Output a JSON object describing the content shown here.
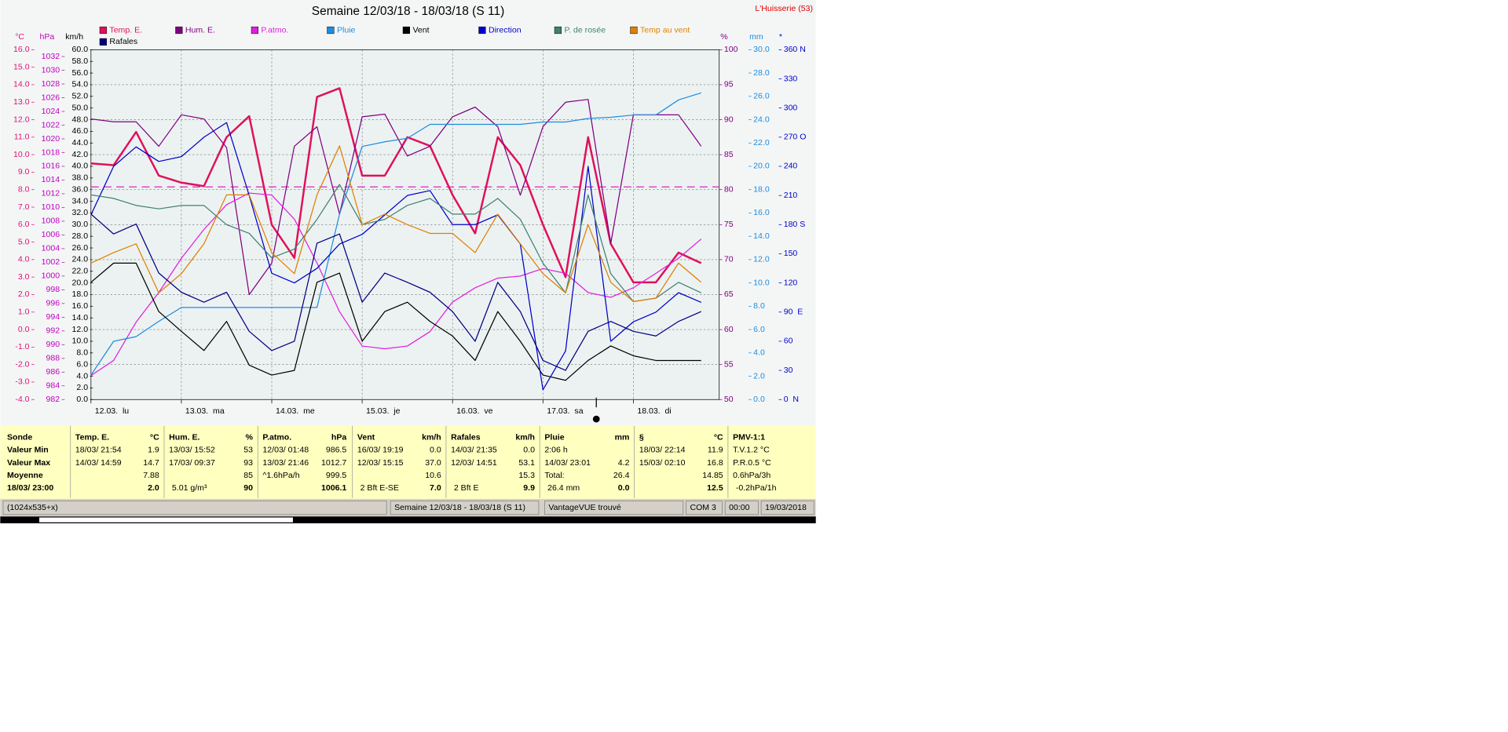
{
  "chart_data": {
    "type": "line",
    "title": "Semaine 12/03/18 - 18/03/18 (S 11)",
    "location": "L'Huisserie (53)",
    "x": [
      0,
      1,
      2,
      3,
      4,
      5,
      6,
      7,
      8,
      9,
      10,
      11,
      12,
      13,
      14,
      15,
      16,
      17,
      18,
      19,
      20,
      21,
      22,
      23,
      24,
      25,
      26,
      27
    ],
    "xlim": [
      0,
      27.8
    ],
    "xticks": [
      {
        "value": 0,
        "label": "12.03.  lu"
      },
      {
        "value": 4,
        "label": "13.03.  ma"
      },
      {
        "value": 8,
        "label": "14.03.  me"
      },
      {
        "value": 12,
        "label": "15.03.  je"
      },
      {
        "value": 16,
        "label": "16.03.  ve"
      },
      {
        "value": 20,
        "label": "17.03.  sa"
      },
      {
        "value": 24,
        "label": "18.03.  di"
      }
    ],
    "grid": true,
    "axes": {
      "temp": {
        "unit": "°C",
        "color": "#e0107a",
        "ylim": [
          -4,
          16
        ],
        "yticks": [
          {
            "value": -4,
            "label": "-4.0"
          },
          {
            "value": -3,
            "label": "-3.0"
          },
          {
            "value": -2,
            "label": "-2.0"
          },
          {
            "value": -1,
            "label": "-1.0"
          },
          {
            "value": 0,
            "label": "0.0"
          },
          {
            "value": 1,
            "label": "1.0"
          },
          {
            "value": 2,
            "label": "2.0"
          },
          {
            "value": 3,
            "label": "3.0"
          },
          {
            "value": 4,
            "label": "4.0"
          },
          {
            "value": 5,
            "label": "5.0"
          },
          {
            "value": 6,
            "label": "6.0"
          },
          {
            "value": 7,
            "label": "7.0"
          },
          {
            "value": 8,
            "label": "8.0"
          },
          {
            "value": 9,
            "label": "9.0"
          },
          {
            "value": 10,
            "label": "10.0"
          },
          {
            "value": 11,
            "label": "11.0"
          },
          {
            "value": 12,
            "label": "12.0"
          },
          {
            "value": 13,
            "label": "13.0"
          },
          {
            "value": 14,
            "label": "14.0"
          },
          {
            "value": 15,
            "label": "15.0"
          },
          {
            "value": 16,
            "label": "16.0"
          }
        ]
      },
      "pressure": {
        "unit": "hPa",
        "color": "#c000c0",
        "ylim": [
          982,
          1033
        ],
        "yticks": [
          982,
          984,
          986,
          988,
          990,
          992,
          994,
          996,
          998,
          1000,
          1002,
          1004,
          1006,
          1008,
          1010,
          1012,
          1014,
          1016,
          1018,
          1020,
          1022,
          1024,
          1026,
          1028,
          1030,
          1032
        ]
      },
      "wind": {
        "unit": "km/h",
        "color": "#000000",
        "ylim": [
          0,
          60
        ],
        "yticks": [
          {
            "value": 0,
            "label": "0.0"
          },
          {
            "value": 2,
            "label": "2.0"
          },
          {
            "value": 4,
            "label": "4.0"
          },
          {
            "value": 6,
            "label": "6.0"
          },
          {
            "value": 8,
            "label": "8.0"
          },
          {
            "value": 10,
            "label": "10.0"
          },
          {
            "value": 12,
            "label": "12.0"
          },
          {
            "value": 14,
            "label": "14.0"
          },
          {
            "value": 16,
            "label": "16.0"
          },
          {
            "value": 18,
            "label": "18.0"
          },
          {
            "value": 20,
            "label": "20.0"
          },
          {
            "value": 22,
            "label": "22.0"
          },
          {
            "value": 24,
            "label": "24.0"
          },
          {
            "value": 26,
            "label": "26.0"
          },
          {
            "value": 28,
            "label": "28.0"
          },
          {
            "value": 30,
            "label": "30.0"
          },
          {
            "value": 32,
            "label": "32.0"
          },
          {
            "value": 34,
            "label": "34.0"
          },
          {
            "value": 36,
            "label": "36.0"
          },
          {
            "value": 38,
            "label": "38.0"
          },
          {
            "value": 40,
            "label": "40.0"
          },
          {
            "value": 42,
            "label": "42.0"
          },
          {
            "value": 44,
            "label": "44.0"
          },
          {
            "value": 46,
            "label": "46.0"
          },
          {
            "value": 48,
            "label": "48.0"
          },
          {
            "value": 50,
            "label": "50.0"
          },
          {
            "value": 52,
            "label": "52.0"
          },
          {
            "value": 54,
            "label": "54.0"
          },
          {
            "value": 56,
            "label": "56.0"
          },
          {
            "value": 58,
            "label": "58.0"
          },
          {
            "value": 60,
            "label": "60.0"
          }
        ]
      },
      "humidity": {
        "unit": "%",
        "color": "#800080",
        "ylim": [
          50,
          100
        ],
        "yticks": [
          50,
          55,
          60,
          65,
          70,
          75,
          80,
          85,
          90,
          95,
          100
        ]
      },
      "rain": {
        "unit": "mm",
        "color": "#1e8ce0",
        "ylim": [
          0,
          30
        ],
        "yticks": [
          {
            "value": 0,
            "label": "0.0"
          },
          {
            "value": 2,
            "label": "2.0"
          },
          {
            "value": 4,
            "label": "4.0"
          },
          {
            "value": 6,
            "label": "6.0"
          },
          {
            "value": 8,
            "label": "8.0"
          },
          {
            "value": 10,
            "label": "10.0"
          },
          {
            "value": 12,
            "label": "12.0"
          },
          {
            "value": 14,
            "label": "14.0"
          },
          {
            "value": 16,
            "label": "16.0"
          },
          {
            "value": 18,
            "label": "18.0"
          },
          {
            "value": 20,
            "label": "20.0"
          },
          {
            "value": 22,
            "label": "22.0"
          },
          {
            "value": 24,
            "label": "24.0"
          },
          {
            "value": 26,
            "label": "26.0"
          },
          {
            "value": 28,
            "label": "28.0"
          },
          {
            "value": 30,
            "label": "30.0"
          }
        ]
      },
      "direction": {
        "unit": "*",
        "color": "#0000cc",
        "ylim": [
          0,
          360
        ],
        "yticks": [
          {
            "value": 0,
            "label": "0  N"
          },
          30,
          60,
          {
            "value": 90,
            "label": "90  E"
          },
          120,
          150,
          {
            "value": 180,
            "label": "180 S"
          },
          210,
          240,
          {
            "value": 270,
            "label": "270 O"
          },
          300,
          330,
          {
            "value": 360,
            "label": "360 N"
          }
        ]
      }
    },
    "reference_line": {
      "axis": "pressure",
      "value": 1013,
      "color": "#e020c0"
    },
    "series": [
      {
        "name": "Temp. E.",
        "color": "#e0105a",
        "axis": "temp",
        "width": 2,
        "values": [
          9.5,
          9.4,
          11.3,
          8.8,
          8.4,
          8.2,
          11.0,
          12.2,
          6.0,
          4.1,
          13.3,
          13.8,
          8.8,
          8.8,
          11.0,
          10.5,
          7.7,
          5.5,
          11.0,
          9.4,
          6.0,
          3.0,
          11.0,
          4.9,
          2.7,
          2.7,
          4.4,
          3.8
        ]
      },
      {
        "name": "Hum. E.",
        "color": "#800080",
        "axis": "humidity",
        "values": [
          90.1,
          89.7,
          89.7,
          86.2,
          90.7,
          90.1,
          86.0,
          65.0,
          69.5,
          86.2,
          89.0,
          76.5,
          90.4,
          90.8,
          84.8,
          86.2,
          90.4,
          91.8,
          89.0,
          79.2,
          89.0,
          92.5,
          92.9,
          72.3,
          90.7,
          90.7,
          90.7,
          86.2
        ]
      },
      {
        "name": "P.atmo.",
        "color": "#e020e0",
        "axis": "pressure",
        "values": [
          985.5,
          987.7,
          993.3,
          997.6,
          1002.6,
          1006.8,
          1010.4,
          1012.1,
          1011.8,
          1008.3,
          1001.9,
          994.8,
          989.8,
          989.4,
          989.8,
          991.9,
          996.2,
          998.3,
          999.7,
          1000.0,
          1001.1,
          1000.4,
          997.6,
          996.9,
          998.3,
          1000.4,
          1002.6,
          1005.4
        ]
      },
      {
        "name": "Pluie",
        "color": "#1e8ce0",
        "axis": "rain",
        "values": [
          2.1,
          5.0,
          5.4,
          6.7,
          7.9,
          7.9,
          7.9,
          7.9,
          7.9,
          7.9,
          7.9,
          15.9,
          21.7,
          22.1,
          22.4,
          23.6,
          23.6,
          23.6,
          23.6,
          23.6,
          23.8,
          23.8,
          24.1,
          24.2,
          24.4,
          24.4,
          25.7,
          26.3
        ]
      },
      {
        "name": "Vent",
        "color": "#000000",
        "axis": "wind",
        "values": [
          20.1,
          23.4,
          23.4,
          15.1,
          11.7,
          8.4,
          13.4,
          5.9,
          4.2,
          5.0,
          20.1,
          21.7,
          10.0,
          15.1,
          16.7,
          13.4,
          10.9,
          6.7,
          15.1,
          10.0,
          4.2,
          3.3,
          6.7,
          9.2,
          7.5,
          6.7,
          6.7,
          6.7
        ]
      },
      {
        "name": "Direction",
        "color": "#0000cc",
        "axis": "direction",
        "values": [
          190,
          240,
          260,
          245,
          250,
          270,
          285,
          210,
          130,
          120,
          135,
          160,
          170,
          190,
          210,
          215,
          180,
          180,
          190,
          160,
          10,
          50,
          240,
          60,
          80,
          90,
          110,
          100
        ]
      },
      {
        "name": "P. de rosée",
        "color": "#408070",
        "axis": "temp",
        "values": [
          7.7,
          7.5,
          7.1,
          6.9,
          7.1,
          7.1,
          6.0,
          5.5,
          4.1,
          4.6,
          6.3,
          8.3,
          6.0,
          6.3,
          7.1,
          7.5,
          6.6,
          6.6,
          7.5,
          6.3,
          3.8,
          2.1,
          7.7,
          3.2,
          1.6,
          1.8,
          2.7,
          2.1
        ]
      },
      {
        "name": "Temp au vent",
        "color": "#e08000",
        "axis": "temp",
        "values": [
          3.8,
          4.4,
          4.9,
          2.1,
          3.2,
          4.9,
          7.7,
          7.7,
          4.4,
          3.2,
          7.7,
          10.5,
          6.0,
          6.6,
          6.0,
          5.5,
          5.5,
          4.4,
          6.6,
          4.9,
          3.2,
          2.1,
          6.0,
          2.7,
          1.6,
          1.8,
          3.8,
          2.7
        ]
      },
      {
        "name": "Rafales",
        "color": "#000080",
        "axis": "wind",
        "values": [
          31.8,
          28.4,
          30.1,
          21.7,
          18.4,
          16.7,
          18.4,
          11.7,
          8.4,
          10.0,
          26.8,
          28.4,
          16.7,
          21.7,
          20.1,
          18.4,
          15.1,
          10.0,
          20.1,
          15.1,
          6.7,
          5.0,
          11.7,
          13.4,
          11.7,
          10.9,
          13.4,
          15.1
        ]
      }
    ]
  },
  "stats": {
    "row_labels": [
      "Sonde",
      "Valeur Min",
      "Valeur Max",
      "Moyenne",
      "18/03/ 23:00"
    ],
    "columns": [
      {
        "header": "Temp. E.",
        "unit": "°C",
        "rows": [
          [
            "18/03/ 21:54",
            "1.9"
          ],
          [
            "14/03/ 14:59",
            "14.7"
          ],
          [
            null,
            "7.88"
          ],
          [
            null,
            "2.0"
          ]
        ]
      },
      {
        "header": "Hum. E.",
        "unit": "%",
        "rows": [
          [
            "13/03/ 15:52",
            "53"
          ],
          [
            "17/03/ 09:37",
            "93"
          ],
          [
            null,
            "85"
          ],
          [
            "5.01 g/m³",
            "90"
          ]
        ]
      },
      {
        "header": "P.atmo.",
        "unit": "hPa",
        "rows": [
          [
            "12/03/ 01:48",
            "986.5"
          ],
          [
            "13/03/ 21:46",
            "1012.7"
          ],
          [
            "^1.6hPa/h",
            "999.5"
          ],
          [
            null,
            "1006.1"
          ]
        ]
      },
      {
        "header": "Vent",
        "unit": "km/h",
        "rows": [
          [
            "16/03/ 19:19",
            "0.0"
          ],
          [
            "12/03/ 15:15",
            "37.0"
          ],
          [
            null,
            "10.6"
          ],
          [
            "2 Bft E-SE",
            "7.0"
          ]
        ]
      },
      {
        "header": "Rafales",
        "unit": "km/h",
        "rows": [
          [
            "14/03/ 21:35",
            "0.0"
          ],
          [
            "12/03/ 14:51",
            "53.1"
          ],
          [
            null,
            "15.3"
          ],
          [
            "2 Bft E",
            "9.9"
          ]
        ]
      },
      {
        "header": "Pluie",
        "unit": "mm",
        "rows": [
          [
            "2:06 h",
            null
          ],
          [
            "14/03/ 23:01",
            "4.2"
          ],
          [
            "Total:",
            "26.4"
          ],
          [
            "26.4 mm",
            "0.0"
          ]
        ]
      },
      {
        "header": "§",
        "unit": "°C",
        "rows": [
          [
            "18/03/ 22:14",
            "11.9"
          ],
          [
            "15/03/ 02:10",
            "16.8"
          ],
          [
            null,
            "14.85"
          ],
          [
            null,
            "12.5"
          ]
        ]
      },
      {
        "header": "PMV-1:1",
        "rows": [
          [
            "T.V.1.2 °C"
          ],
          [
            "P.R.0.5 °C"
          ],
          [
            "0.6hPa/3h"
          ],
          [
            "-0.2hPa/1h"
          ]
        ]
      }
    ]
  },
  "status_bar": [
    "(1024x535+x)",
    "Semaine 12/03/18 - 18/03/18 (S 11)",
    "VantageVUE trouvé",
    "COM 3",
    "00:00",
    "19/03/2018"
  ]
}
